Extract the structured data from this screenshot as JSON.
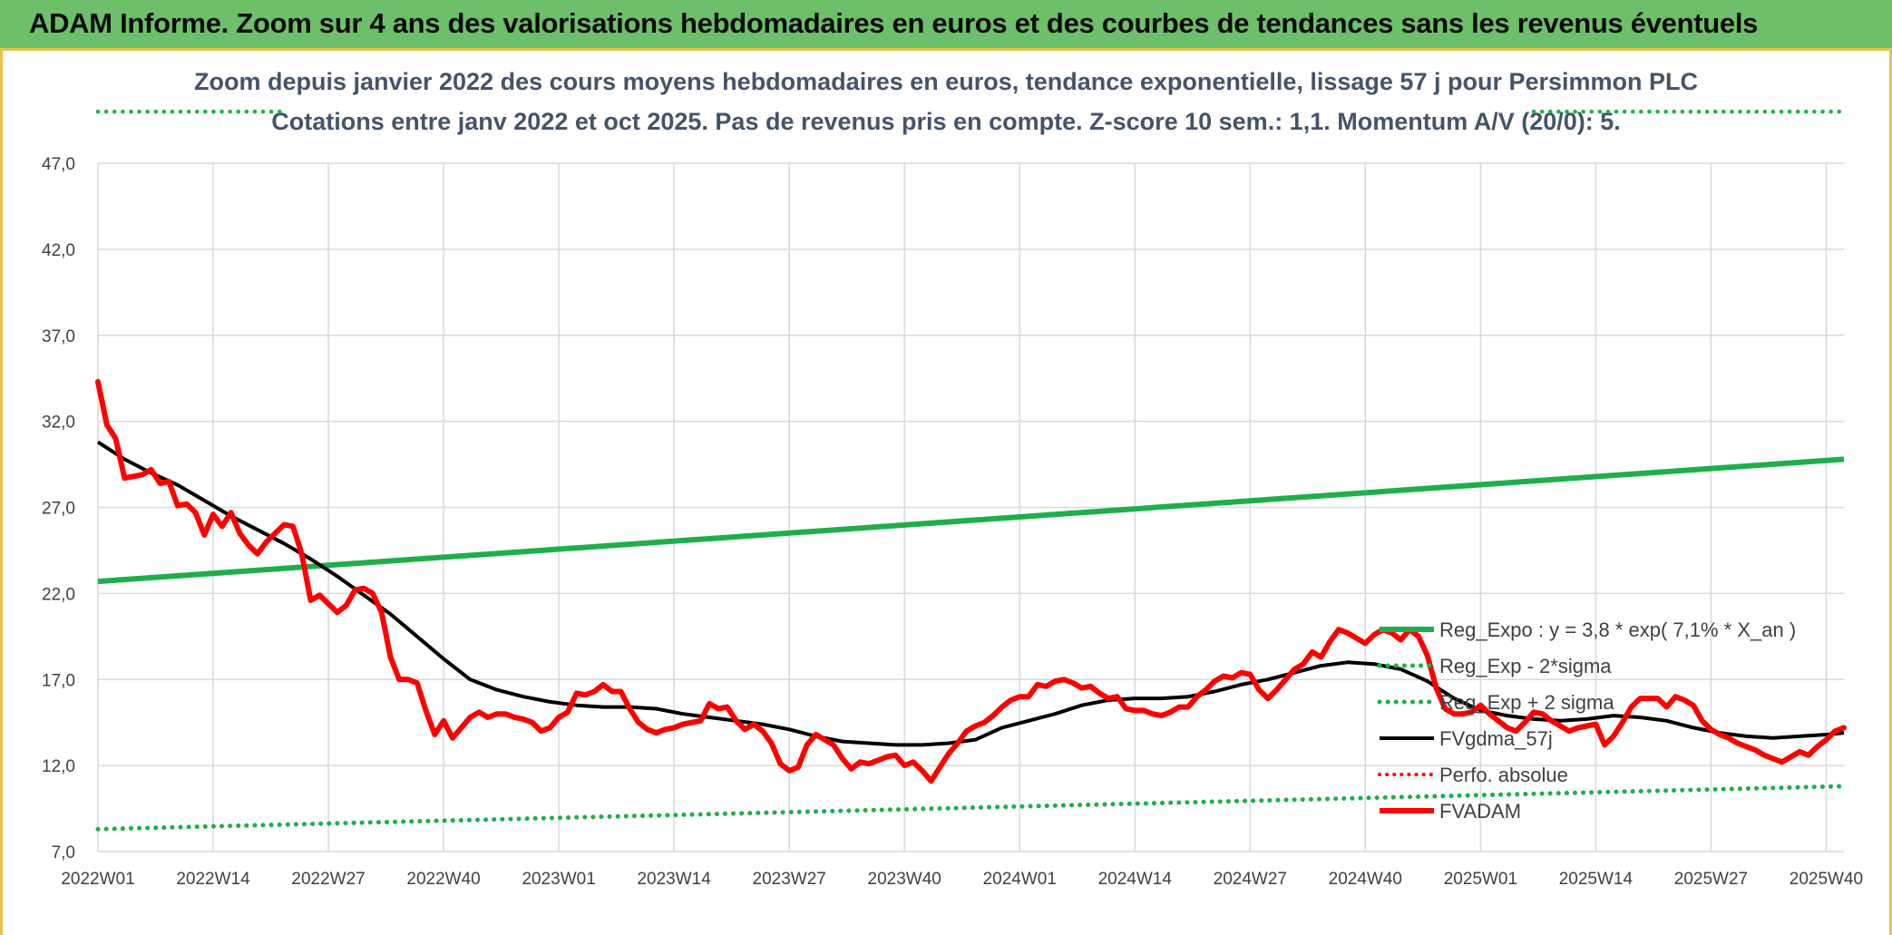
{
  "header": {
    "title": "ADAM Informe. Zoom sur 4 ans des valorisations hebdomadaires en euros et des courbes de tendances sans les revenus éventuels"
  },
  "chart_data": {
    "type": "line",
    "title_line1": "Zoom depuis janvier 2022 des cours moyens hebdomadaires en euros, tendance exponentielle, lissage 57 j pour Persimmon PLC",
    "title_line2": "Cotations entre janv 2022 et oct 2025. Pas de revenus pris en compte. Z-score 10 sem.: 1,1. Momentum A/V (20/0): 5.",
    "x_categories": [
      "2022W01",
      "2022W14",
      "2022W27",
      "2022W40",
      "2023W01",
      "2023W14",
      "2023W27",
      "2023W40",
      "2024W01",
      "2024W14",
      "2024W27",
      "2024W40",
      "2025W01",
      "2025W14",
      "2025W27",
      "2025W40"
    ],
    "x_range": [
      0,
      197
    ],
    "ylim": [
      7,
      47
    ],
    "y_ticks": [
      "7,0",
      "12,0",
      "17,0",
      "22,0",
      "27,0",
      "32,0",
      "37,0",
      "42,0",
      "47,0"
    ],
    "colors": {
      "reg_expo": "#1fae4b",
      "sigma_lines": "#1fae4b",
      "fvgdma": "#000000",
      "fvadam": "#ff0000",
      "perfo": "#ff0000",
      "grid": "#d9d9d9"
    },
    "legend": [
      {
        "key": "reg_expo",
        "label": "Reg_Expo : y = 3,8 * exp( 7,1% *  X_an )",
        "style": "solid-thick"
      },
      {
        "key": "minus2",
        "label": "Reg_Exp - 2*sigma",
        "style": "dotted-green"
      },
      {
        "key": "plus2",
        "label": "Reg_Exp + 2 sigma",
        "style": "dotted-green"
      },
      {
        "key": "fvgdma",
        "label": "FVgdma_57j",
        "style": "solid-black"
      },
      {
        "key": "perfo",
        "label": "Perfo. absolue",
        "style": "dotted-red"
      },
      {
        "key": "fvadam",
        "label": "FVADAM",
        "style": "solid-red"
      }
    ],
    "series": {
      "reg_expo": [
        [
          0,
          22.7
        ],
        [
          197,
          29.8
        ]
      ],
      "minus2": [
        [
          0,
          8.3
        ],
        [
          197,
          10.8
        ]
      ],
      "plus2_visible_segments": [
        [
          [
            0,
            50.0
          ],
          [
            21,
            50.0
          ]
        ],
        [
          [
            162,
            50.0
          ],
          [
            197,
            50.0
          ]
        ]
      ],
      "plus2_value": 50.0,
      "fvgdma": [
        [
          0,
          30.8
        ],
        [
          3,
          29.8
        ],
        [
          6,
          29.0
        ],
        [
          9,
          28.3
        ],
        [
          12,
          27.4
        ],
        [
          15,
          26.5
        ],
        [
          18,
          25.7
        ],
        [
          21,
          24.9
        ],
        [
          24,
          24.0
        ],
        [
          27,
          23.0
        ],
        [
          30,
          21.9
        ],
        [
          33,
          20.8
        ],
        [
          36,
          19.5
        ],
        [
          39,
          18.2
        ],
        [
          42,
          17.0
        ],
        [
          45,
          16.4
        ],
        [
          48,
          16.0
        ],
        [
          51,
          15.7
        ],
        [
          54,
          15.5
        ],
        [
          57,
          15.4
        ],
        [
          60,
          15.4
        ],
        [
          63,
          15.3
        ],
        [
          66,
          15.0
        ],
        [
          69,
          14.8
        ],
        [
          72,
          14.6
        ],
        [
          75,
          14.4
        ],
        [
          78,
          14.1
        ],
        [
          81,
          13.7
        ],
        [
          84,
          13.4
        ],
        [
          87,
          13.3
        ],
        [
          90,
          13.2
        ],
        [
          93,
          13.2
        ],
        [
          96,
          13.3
        ],
        [
          99,
          13.5
        ],
        [
          102,
          14.2
        ],
        [
          105,
          14.6
        ],
        [
          108,
          15.0
        ],
        [
          111,
          15.5
        ],
        [
          114,
          15.8
        ],
        [
          117,
          15.9
        ],
        [
          120,
          15.9
        ],
        [
          123,
          16.0
        ],
        [
          126,
          16.3
        ],
        [
          129,
          16.7
        ],
        [
          132,
          17.0
        ],
        [
          135,
          17.4
        ],
        [
          138,
          17.8
        ],
        [
          141,
          18.0
        ],
        [
          144,
          17.9
        ],
        [
          147,
          17.6
        ],
        [
          150,
          16.9
        ],
        [
          153,
          15.9
        ],
        [
          156,
          15.2
        ],
        [
          159,
          14.9
        ],
        [
          162,
          14.7
        ],
        [
          165,
          14.6
        ],
        [
          168,
          14.7
        ],
        [
          171,
          14.9
        ],
        [
          174,
          14.8
        ],
        [
          177,
          14.6
        ],
        [
          180,
          14.2
        ],
        [
          183,
          13.9
        ],
        [
          186,
          13.7
        ],
        [
          189,
          13.6
        ],
        [
          192,
          13.7
        ],
        [
          195,
          13.8
        ],
        [
          197,
          13.9
        ]
      ],
      "fvadam": [
        [
          0,
          34.3
        ],
        [
          1,
          31.8
        ],
        [
          2,
          31.0
        ],
        [
          3,
          28.7
        ],
        [
          4,
          28.8
        ],
        [
          5,
          28.9
        ],
        [
          6,
          29.2
        ],
        [
          7,
          28.4
        ],
        [
          8,
          28.5
        ],
        [
          9,
          27.1
        ],
        [
          10,
          27.2
        ],
        [
          11,
          26.7
        ],
        [
          12,
          25.4
        ],
        [
          13,
          26.6
        ],
        [
          14,
          25.9
        ],
        [
          15,
          26.7
        ],
        [
          16,
          25.5
        ],
        [
          17,
          24.8
        ],
        [
          18,
          24.3
        ],
        [
          19,
          25.0
        ],
        [
          20,
          25.5
        ],
        [
          21,
          26.0
        ],
        [
          22,
          25.9
        ],
        [
          23,
          24.3
        ],
        [
          24,
          21.6
        ],
        [
          25,
          21.9
        ],
        [
          26,
          21.4
        ],
        [
          27,
          20.9
        ],
        [
          28,
          21.3
        ],
        [
          29,
          22.2
        ],
        [
          30,
          22.3
        ],
        [
          31,
          22.0
        ],
        [
          32,
          20.9
        ],
        [
          33,
          18.3
        ],
        [
          34,
          17.0
        ],
        [
          35,
          17.0
        ],
        [
          36,
          16.8
        ],
        [
          37,
          15.2
        ],
        [
          38,
          13.8
        ],
        [
          39,
          14.6
        ],
        [
          40,
          13.6
        ],
        [
          41,
          14.2
        ],
        [
          42,
          14.8
        ],
        [
          43,
          15.1
        ],
        [
          44,
          14.8
        ],
        [
          45,
          15.0
        ],
        [
          46,
          15.0
        ],
        [
          47,
          14.8
        ],
        [
          48,
          14.7
        ],
        [
          49,
          14.5
        ],
        [
          50,
          14.0
        ],
        [
          51,
          14.2
        ],
        [
          52,
          14.8
        ],
        [
          53,
          15.1
        ],
        [
          54,
          16.2
        ],
        [
          55,
          16.1
        ],
        [
          56,
          16.3
        ],
        [
          57,
          16.7
        ],
        [
          58,
          16.3
        ],
        [
          59,
          16.3
        ],
        [
          60,
          15.3
        ],
        [
          61,
          14.5
        ],
        [
          62,
          14.1
        ],
        [
          63,
          13.9
        ],
        [
          64,
          14.1
        ],
        [
          65,
          14.2
        ],
        [
          66,
          14.4
        ],
        [
          67,
          14.5
        ],
        [
          68,
          14.6
        ],
        [
          69,
          15.6
        ],
        [
          70,
          15.3
        ],
        [
          71,
          15.4
        ],
        [
          72,
          14.6
        ],
        [
          73,
          14.1
        ],
        [
          74,
          14.4
        ],
        [
          75,
          14.0
        ],
        [
          76,
          13.3
        ],
        [
          77,
          12.1
        ],
        [
          78,
          11.7
        ],
        [
          79,
          11.9
        ],
        [
          80,
          13.2
        ],
        [
          81,
          13.8
        ],
        [
          82,
          13.5
        ],
        [
          83,
          13.2
        ],
        [
          84,
          12.4
        ],
        [
          85,
          11.8
        ],
        [
          86,
          12.2
        ],
        [
          87,
          12.1
        ],
        [
          88,
          12.3
        ],
        [
          89,
          12.5
        ],
        [
          90,
          12.6
        ],
        [
          91,
          12.0
        ],
        [
          92,
          12.2
        ],
        [
          93,
          11.7
        ],
        [
          94,
          11.1
        ],
        [
          95,
          11.9
        ],
        [
          96,
          12.7
        ],
        [
          97,
          13.3
        ],
        [
          98,
          14.0
        ],
        [
          99,
          14.3
        ],
        [
          100,
          14.5
        ],
        [
          101,
          14.9
        ],
        [
          102,
          15.4
        ],
        [
          103,
          15.8
        ],
        [
          104,
          16.0
        ],
        [
          105,
          16.0
        ],
        [
          106,
          16.7
        ],
        [
          107,
          16.6
        ],
        [
          108,
          16.9
        ],
        [
          109,
          17.0
        ],
        [
          110,
          16.8
        ],
        [
          111,
          16.5
        ],
        [
          112,
          16.6
        ],
        [
          113,
          16.2
        ],
        [
          114,
          15.9
        ],
        [
          115,
          16.0
        ],
        [
          116,
          15.3
        ],
        [
          117,
          15.2
        ],
        [
          118,
          15.2
        ],
        [
          119,
          15.0
        ],
        [
          120,
          14.9
        ],
        [
          121,
          15.1
        ],
        [
          122,
          15.4
        ],
        [
          123,
          15.4
        ],
        [
          124,
          16.0
        ],
        [
          125,
          16.4
        ],
        [
          126,
          16.9
        ],
        [
          127,
          17.2
        ],
        [
          128,
          17.1
        ],
        [
          129,
          17.4
        ],
        [
          130,
          17.3
        ],
        [
          131,
          16.4
        ],
        [
          132,
          15.9
        ],
        [
          133,
          16.4
        ],
        [
          134,
          17.0
        ],
        [
          135,
          17.6
        ],
        [
          136,
          17.9
        ],
        [
          137,
          18.6
        ],
        [
          138,
          18.3
        ],
        [
          139,
          19.2
        ],
        [
          140,
          19.9
        ],
        [
          141,
          19.7
        ],
        [
          142,
          19.4
        ],
        [
          143,
          19.1
        ],
        [
          144,
          19.6
        ],
        [
          145,
          19.9
        ],
        [
          146,
          19.7
        ],
        [
          147,
          19.3
        ],
        [
          148,
          19.9
        ],
        [
          149,
          19.5
        ],
        [
          150,
          18.4
        ],
        [
          151,
          16.5
        ],
        [
          152,
          15.3
        ],
        [
          153,
          15.0
        ],
        [
          154,
          15.0
        ],
        [
          155,
          15.1
        ],
        [
          156,
          15.5
        ],
        [
          157,
          15.0
        ],
        [
          158,
          14.6
        ],
        [
          159,
          14.2
        ],
        [
          160,
          14.0
        ],
        [
          161,
          14.5
        ],
        [
          162,
          15.1
        ],
        [
          163,
          15.0
        ],
        [
          164,
          14.6
        ],
        [
          165,
          14.3
        ],
        [
          166,
          14.0
        ],
        [
          167,
          14.2
        ],
        [
          168,
          14.3
        ],
        [
          169,
          14.4
        ],
        [
          170,
          13.2
        ],
        [
          171,
          13.7
        ],
        [
          172,
          14.5
        ],
        [
          173,
          15.4
        ],
        [
          174,
          15.9
        ],
        [
          175,
          15.9
        ],
        [
          176,
          15.9
        ],
        [
          177,
          15.4
        ],
        [
          178,
          16.0
        ],
        [
          179,
          15.8
        ],
        [
          180,
          15.5
        ],
        [
          181,
          14.6
        ],
        [
          182,
          14.1
        ],
        [
          183,
          13.8
        ],
        [
          184,
          13.6
        ],
        [
          185,
          13.3
        ],
        [
          186,
          13.1
        ],
        [
          187,
          12.9
        ],
        [
          188,
          12.6
        ],
        [
          189,
          12.4
        ],
        [
          190,
          12.2
        ],
        [
          191,
          12.5
        ],
        [
          192,
          12.8
        ],
        [
          193,
          12.6
        ],
        [
          194,
          13.1
        ],
        [
          195,
          13.5
        ],
        [
          196,
          14.0
        ],
        [
          197,
          14.2
        ]
      ]
    }
  }
}
